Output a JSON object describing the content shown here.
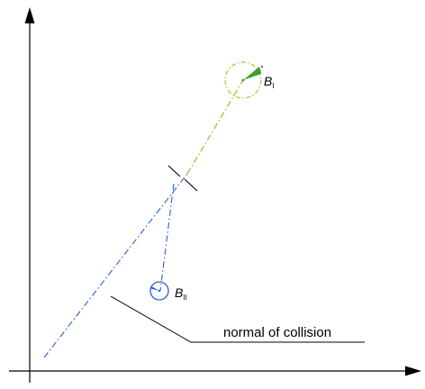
{
  "diagram": {
    "body_one": {
      "letter": "B",
      "subscript": "I",
      "color": "#9acd32",
      "accent": "#3aa12a"
    },
    "body_two": {
      "letter": "B",
      "subscript": "II",
      "color": "#2d5bd1"
    },
    "normal_label": "normal of collision",
    "colors": {
      "axis": "#000000",
      "line_one": "#9acd32",
      "line_two": "#2d5bd1",
      "leader": "#000000"
    }
  }
}
